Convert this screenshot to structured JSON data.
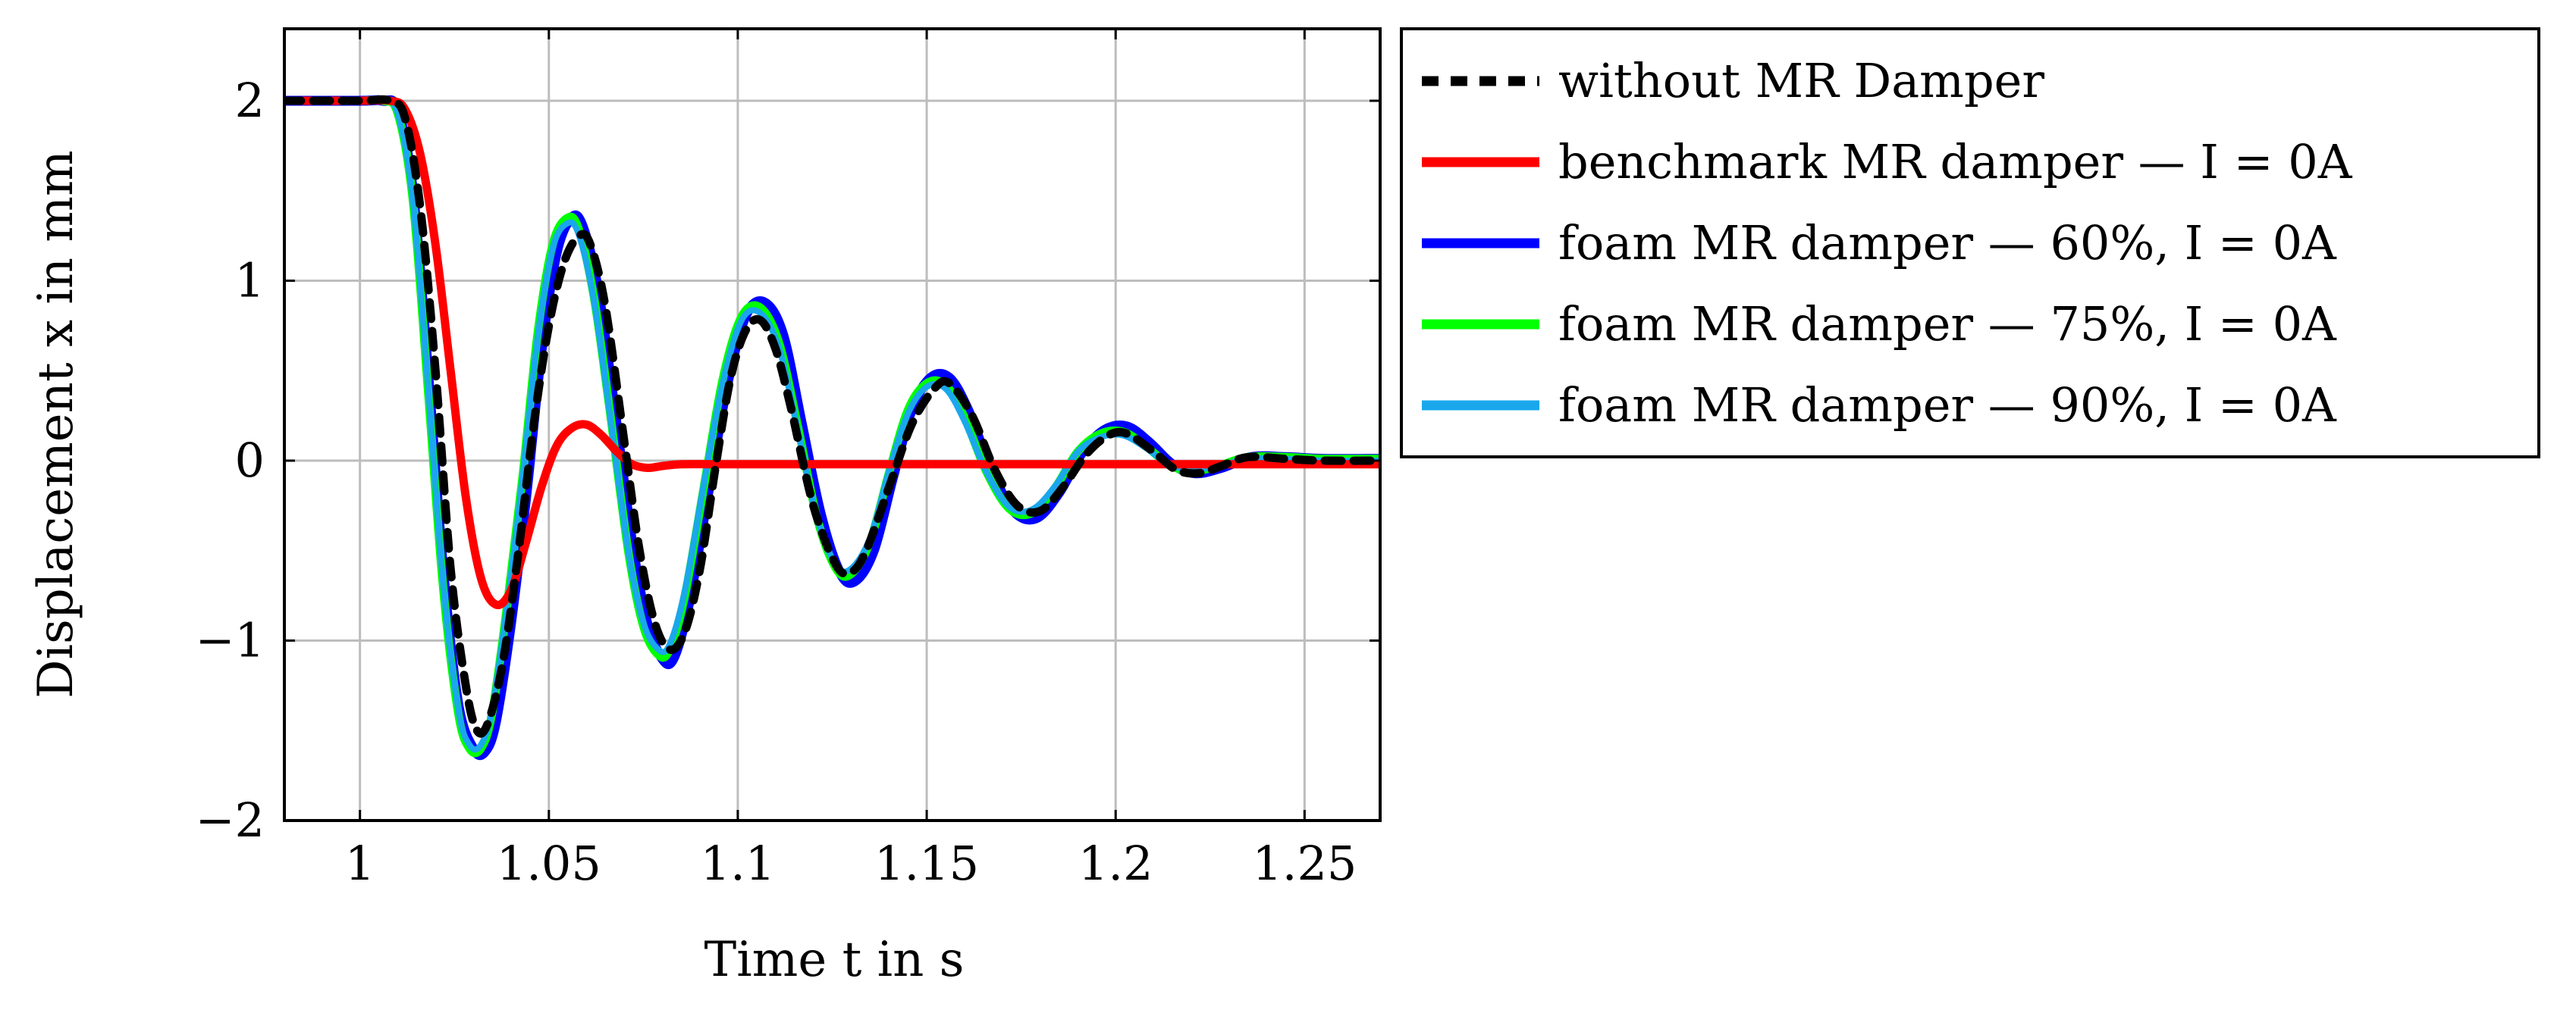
{
  "chart_data": {
    "type": "line",
    "title": "",
    "xlabel": "Time t in s",
    "ylabel": "Displacement x in mm",
    "xlim": [
      0.98,
      1.27
    ],
    "ylim": [
      -2,
      2.4
    ],
    "xticks": [
      1,
      1.05,
      1.1,
      1.15,
      1.2,
      1.25
    ],
    "xtick_labels": [
      "1",
      "1.05",
      "1.1",
      "1.15",
      "1.2",
      "1.25"
    ],
    "yticks": [
      -2,
      -1,
      0,
      1,
      2
    ],
    "ytick_labels": [
      "−2",
      "−1",
      "0",
      "1",
      "2"
    ],
    "grid": true,
    "legend_position": "outside right, top",
    "series": [
      {
        "name": "without MR Damper",
        "color": "#000000",
        "dash": "dashed",
        "x": [
          0.98,
          1.0,
          1.008,
          1.012,
          1.016,
          1.02,
          1.024,
          1.028,
          1.031,
          1.034,
          1.038,
          1.042,
          1.046,
          1.05,
          1.054,
          1.058,
          1.061,
          1.065,
          1.07,
          1.074,
          1.078,
          1.082,
          1.086,
          1.09,
          1.094,
          1.098,
          1.102,
          1.106,
          1.11,
          1.114,
          1.12,
          1.126,
          1.13,
          1.134,
          1.14,
          1.146,
          1.152,
          1.156,
          1.162,
          1.168,
          1.174,
          1.18,
          1.186,
          1.192,
          1.198,
          1.203,
          1.21,
          1.216,
          1.222,
          1.228,
          1.235,
          1.245,
          1.255,
          1.27
        ],
        "y": [
          2.0,
          2.0,
          2.0,
          1.9,
          1.4,
          0.5,
          -0.6,
          -1.25,
          -1.5,
          -1.45,
          -1.1,
          -0.5,
          0.2,
          0.75,
          1.1,
          1.25,
          1.2,
          0.85,
          0.1,
          -0.5,
          -0.9,
          -1.05,
          -0.95,
          -0.6,
          -0.05,
          0.45,
          0.72,
          0.78,
          0.62,
          0.3,
          -0.25,
          -0.58,
          -0.62,
          -0.5,
          -0.15,
          0.2,
          0.4,
          0.43,
          0.25,
          -0.05,
          -0.25,
          -0.28,
          -0.15,
          0.03,
          0.14,
          0.15,
          0.05,
          -0.05,
          -0.07,
          -0.03,
          0.02,
          0.01,
          0.0,
          0.0
        ]
      },
      {
        "name": "benchmark MR damper — I = 0A",
        "color": "#ff0000",
        "dash": "solid",
        "x": [
          0.98,
          1.0,
          1.008,
          1.012,
          1.016,
          1.02,
          1.024,
          1.028,
          1.032,
          1.036,
          1.04,
          1.044,
          1.048,
          1.052,
          1.056,
          1.06,
          1.064,
          1.068,
          1.072,
          1.076,
          1.08,
          1.085,
          1.095,
          1.11,
          1.14,
          1.2,
          1.27
        ],
        "y": [
          2.0,
          2.0,
          2.0,
          1.95,
          1.7,
          1.2,
          0.5,
          -0.2,
          -0.65,
          -0.8,
          -0.72,
          -0.45,
          -0.15,
          0.08,
          0.18,
          0.2,
          0.14,
          0.05,
          -0.02,
          -0.04,
          -0.03,
          -0.02,
          -0.02,
          -0.02,
          -0.02,
          -0.02,
          -0.02
        ]
      },
      {
        "name": "foam MR damper — 60%, I = 0A",
        "color": "#0000ff",
        "dash": "solid",
        "x": [
          0.98,
          1.0,
          1.006,
          1.01,
          1.014,
          1.018,
          1.022,
          1.026,
          1.03,
          1.033,
          1.036,
          1.04,
          1.044,
          1.048,
          1.052,
          1.056,
          1.059,
          1.063,
          1.067,
          1.072,
          1.076,
          1.08,
          1.083,
          1.087,
          1.092,
          1.097,
          1.102,
          1.107,
          1.112,
          1.117,
          1.122,
          1.127,
          1.131,
          1.136,
          1.141,
          1.146,
          1.151,
          1.156,
          1.161,
          1.167,
          1.173,
          1.179,
          1.185,
          1.191,
          1.197,
          1.203,
          1.209,
          1.215,
          1.221,
          1.228,
          1.236,
          1.245,
          1.255,
          1.27
        ],
        "y": [
          2.0,
          2.0,
          2.0,
          1.95,
          1.5,
          0.5,
          -0.6,
          -1.35,
          -1.6,
          -1.62,
          -1.45,
          -0.9,
          -0.2,
          0.6,
          1.15,
          1.35,
          1.3,
          0.95,
          0.35,
          -0.45,
          -0.9,
          -1.1,
          -1.1,
          -0.8,
          -0.2,
          0.4,
          0.8,
          0.88,
          0.7,
          0.2,
          -0.3,
          -0.62,
          -0.67,
          -0.5,
          -0.1,
          0.28,
          0.46,
          0.46,
          0.28,
          -0.05,
          -0.28,
          -0.32,
          -0.18,
          0.04,
          0.17,
          0.19,
          0.1,
          -0.02,
          -0.07,
          -0.04,
          0.02,
          0.02,
          0.01,
          0.01
        ]
      },
      {
        "name": "foam MR damper — 75%, I = 0A",
        "color": "#00ff00",
        "dash": "solid",
        "x": [
          0.98,
          1.0,
          1.006,
          1.01,
          1.014,
          1.018,
          1.022,
          1.026,
          1.029,
          1.032,
          1.035,
          1.039,
          1.043,
          1.047,
          1.051,
          1.055,
          1.058,
          1.062,
          1.066,
          1.071,
          1.075,
          1.079,
          1.082,
          1.086,
          1.091,
          1.096,
          1.101,
          1.106,
          1.111,
          1.116,
          1.121,
          1.126,
          1.13,
          1.135,
          1.14,
          1.145,
          1.15,
          1.155,
          1.16,
          1.166,
          1.172,
          1.178,
          1.184,
          1.19,
          1.196,
          1.202,
          1.208,
          1.214,
          1.22,
          1.227,
          1.235,
          1.245,
          1.255,
          1.27
        ],
        "y": [
          2.0,
          2.0,
          2.0,
          1.93,
          1.45,
          0.4,
          -0.7,
          -1.4,
          -1.6,
          -1.6,
          -1.4,
          -0.8,
          -0.1,
          0.7,
          1.2,
          1.35,
          1.28,
          0.9,
          0.3,
          -0.5,
          -0.92,
          -1.08,
          -1.05,
          -0.75,
          -0.15,
          0.45,
          0.8,
          0.85,
          0.65,
          0.18,
          -0.32,
          -0.6,
          -0.63,
          -0.45,
          -0.07,
          0.28,
          0.43,
          0.42,
          0.24,
          -0.07,
          -0.27,
          -0.29,
          -0.15,
          0.05,
          0.15,
          0.16,
          0.08,
          -0.02,
          -0.06,
          -0.03,
          0.02,
          0.02,
          0.01,
          0.01
        ]
      },
      {
        "name": "foam MR damper — 90%, I = 0A",
        "color": "#1aa7ec",
        "dash": "solid",
        "x": [
          0.98,
          1.0,
          1.006,
          1.01,
          1.014,
          1.018,
          1.022,
          1.026,
          1.029,
          1.032,
          1.035,
          1.039,
          1.043,
          1.047,
          1.051,
          1.055,
          1.058,
          1.062,
          1.066,
          1.071,
          1.075,
          1.079,
          1.082,
          1.086,
          1.091,
          1.096,
          1.101,
          1.106,
          1.111,
          1.116,
          1.121,
          1.126,
          1.13,
          1.135,
          1.14,
          1.145,
          1.15,
          1.155,
          1.16,
          1.166,
          1.172,
          1.178,
          1.184,
          1.19,
          1.196,
          1.202,
          1.208,
          1.214,
          1.22,
          1.227,
          1.235,
          1.245,
          1.255,
          1.27
        ],
        "y": [
          2.0,
          2.0,
          2.0,
          1.93,
          1.45,
          0.42,
          -0.68,
          -1.38,
          -1.58,
          -1.58,
          -1.38,
          -0.8,
          -0.1,
          0.68,
          1.18,
          1.32,
          1.25,
          0.88,
          0.28,
          -0.5,
          -0.9,
          -1.05,
          -1.02,
          -0.72,
          -0.13,
          0.43,
          0.78,
          0.82,
          0.62,
          0.16,
          -0.32,
          -0.58,
          -0.6,
          -0.43,
          -0.06,
          0.26,
          0.41,
          0.4,
          0.22,
          -0.07,
          -0.26,
          -0.27,
          -0.14,
          0.05,
          0.13,
          0.14,
          0.07,
          -0.02,
          -0.05,
          -0.03,
          0.01,
          0.01,
          0.0,
          0.0
        ]
      }
    ]
  }
}
